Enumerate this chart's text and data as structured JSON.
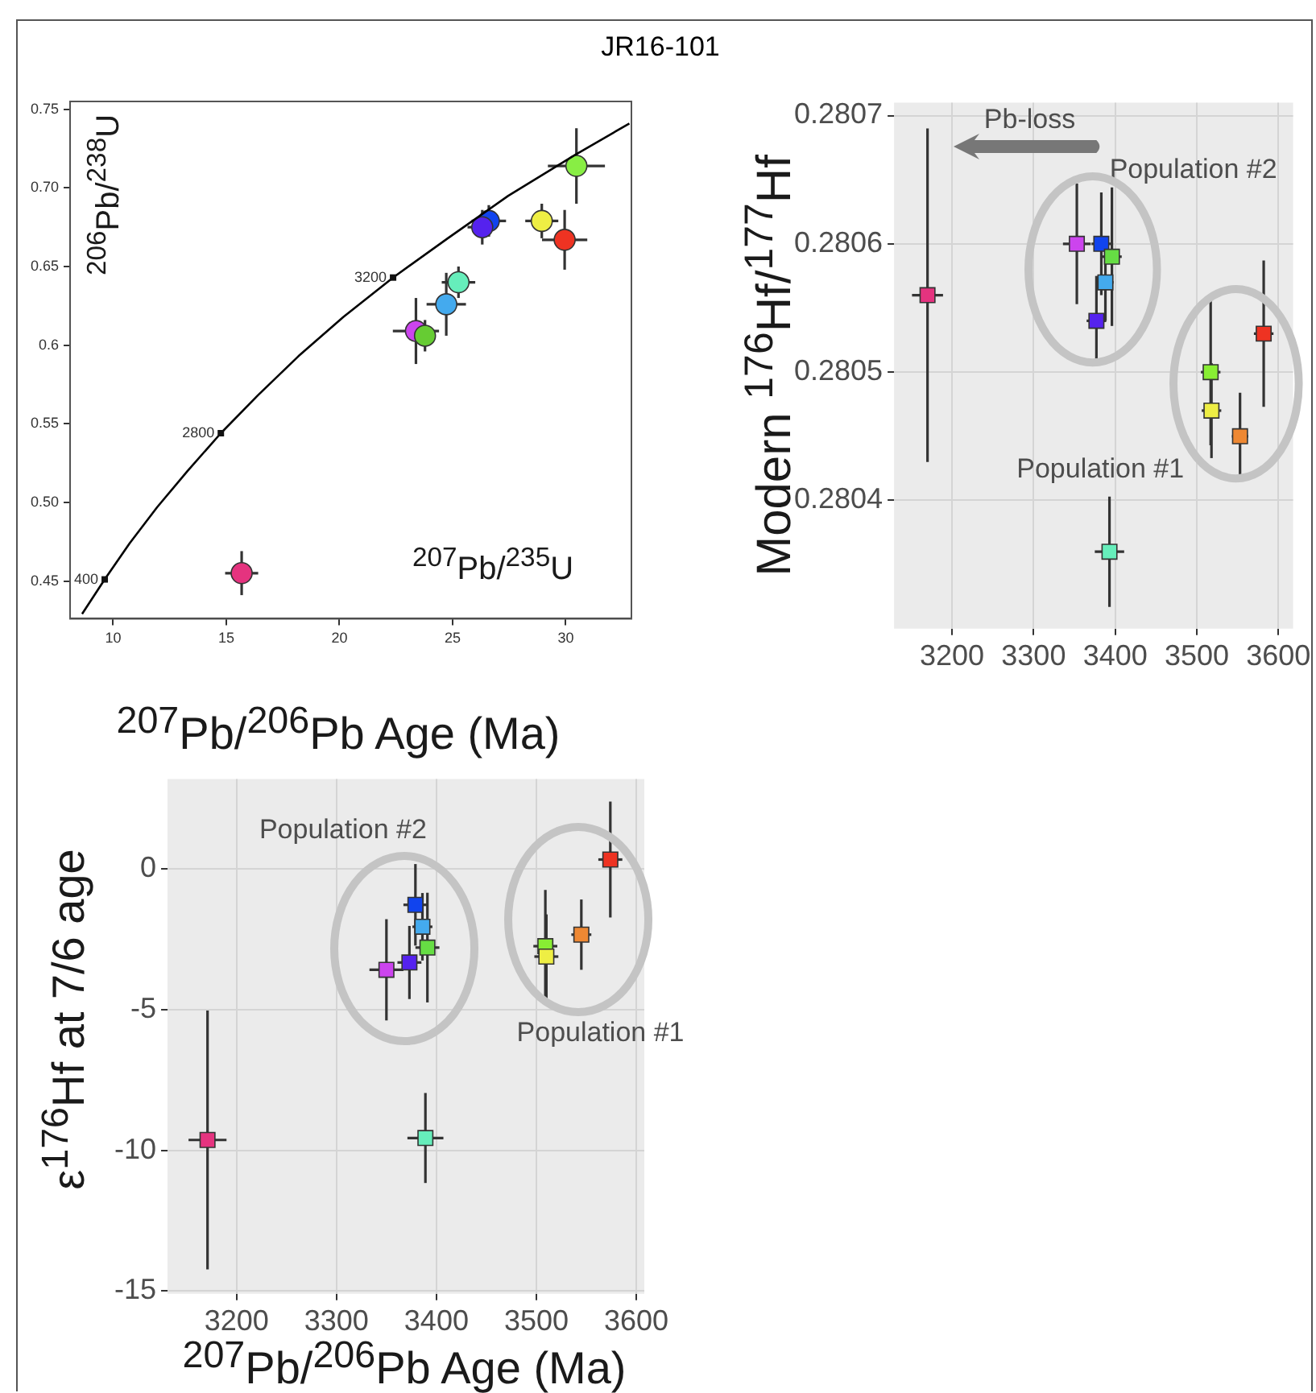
{
  "chart_data": [
    {
      "type": "scatter",
      "title": "JR16-101",
      "xlabel": "$^{207}$Pb/$^{235}$U",
      "ylabel": "$^{206}$Pb/$^{238}$U",
      "xlim": [
        8.1,
        32.9
      ],
      "ylim": [
        0.426,
        0.755
      ],
      "xticks": [
        10,
        15,
        20,
        25,
        30
      ],
      "yticks": [
        0.45,
        {
          "value": 0.5,
          "label": "0.50"
        },
        0.55,
        0.6,
        0.65,
        {
          "value": 0.7,
          "label": "0.70"
        },
        0.75
      ],
      "grid": false,
      "annotations": [
        {
          "text": "400",
          "x": 9.63,
          "y": 0.451
        },
        {
          "text": "2800",
          "x": 14.76,
          "y": 0.544
        },
        {
          "text": "3200",
          "x": 22.37,
          "y": 0.643
        }
      ],
      "series": [
        {
          "type": "line",
          "color": "#000000",
          "marker": "none",
          "x": [
            8.63,
            9.63,
            10.73,
            11.95,
            13.29,
            14.76,
            16.39,
            18.19,
            20.18,
            22.37,
            24.79,
            27.46,
            30.41,
            32.81
          ],
          "values": [
            0.429,
            0.451,
            0.474,
            0.497,
            0.52,
            0.544,
            0.568,
            0.593,
            0.618,
            0.643,
            0.668,
            0.695,
            0.721,
            0.741
          ]
        },
        {
          "marker": "circle",
          "x": [
            15.68,
            23.38,
            23.78,
            24.72,
            25.26,
            26.6,
            26.31,
            28.94,
            29.95,
            30.47
          ],
          "values": [
            0.455,
            0.609,
            0.606,
            0.626,
            0.64,
            0.679,
            0.675,
            0.679,
            0.667,
            0.714
          ],
          "xerrors": [
            0.73,
            1.02,
            0.47,
            0.87,
            0.74,
            0.76,
            0.65,
            0.73,
            1.0,
            1.26
          ],
          "errors": [
            0.014,
            0.021,
            0.01,
            0.02,
            0.01,
            0.01,
            0.011,
            0.011,
            0.019,
            0.024
          ],
          "colors": [
            "#e5337f",
            "#cc44ee",
            "#66cc33",
            "#44aaee",
            "#66eebb",
            "#1144ee",
            "#5522ee",
            "#eeee44",
            "#ee3322",
            "#88ee44"
          ]
        }
      ]
    },
    {
      "type": "scatter",
      "xlabel": "$^{207}$Pb/$^{206}$Pb Age (Ma)",
      "ylabel": "Modern $^{176}$Hf/$^{177}$Hf",
      "xlim": [
        3129,
        3618
      ],
      "ylim": [
        0.2803,
        0.28071
      ],
      "xticks": [
        3200,
        3300,
        3400,
        3500,
        3600
      ],
      "yticks": [
        0.2804,
        0.2805,
        0.2806,
        0.2807
      ],
      "grid": true,
      "marker": "square",
      "annotations": [
        "Pb-loss",
        "Population #2",
        "Population #1"
      ],
      "series": [
        {
          "x": [
            3170,
            3353,
            3377,
            3383,
            3388,
            3396,
            3393,
            3517,
            3518,
            3553,
            3582
          ],
          "values": [
            0.28056,
            0.2806,
            0.28054,
            0.2806,
            0.28057,
            0.28059,
            0.28036,
            0.2805,
            0.28047,
            0.28045,
            0.28053
          ],
          "xerrors": [
            19,
            17,
            12,
            12,
            10,
            12,
            18,
            12,
            12,
            10,
            12
          ],
          "errors": [
            0.00013,
            4.7e-05,
            3.5e-05,
            4e-05,
            3e-05,
            5.4e-05,
            4.3e-05,
            5.7e-05,
            3.7e-05,
            3.4e-05,
            5.7e-05
          ],
          "colors": [
            "#e5337f",
            "#cc44ee",
            "#5522ee",
            "#1144ee",
            "#44aaee",
            "#66dd44",
            "#66eebb",
            "#88ee33",
            "#eeee44",
            "#ee8833",
            "#ee3322"
          ]
        }
      ]
    },
    {
      "type": "scatter",
      "xlabel": "$^{207}$Pb/$^{206}$Pb Age (Ma)",
      "ylabel": "ε$^{176}$Hf at 7/6 age",
      "xlim": [
        3131,
        3608
      ],
      "ylim": [
        -15.1,
        3.2
      ],
      "xticks": [
        3200,
        3300,
        3400,
        3500,
        3600
      ],
      "yticks": [
        -15,
        -10,
        -5,
        0
      ],
      "grid": true,
      "marker": "square",
      "annotations": [
        "Population #2",
        "Population #1"
      ],
      "series": [
        {
          "x": [
            3171,
            3350,
            3373,
            3379,
            3386,
            3391,
            3389,
            3509,
            3510,
            3545,
            3574
          ],
          "values": [
            -9.63,
            -3.58,
            -3.32,
            -1.27,
            -2.05,
            -2.79,
            -9.56,
            -2.74,
            -3.11,
            -2.33,
            0.34
          ],
          "xerrors": [
            19,
            17,
            12,
            12,
            10,
            12,
            18,
            12,
            12,
            10,
            12
          ],
          "errors": [
            4.6,
            1.8,
            1.3,
            1.45,
            1.2,
            1.95,
            1.6,
            2.0,
            1.5,
            1.25,
            2.06
          ],
          "colors": [
            "#e5337f",
            "#cc44ee",
            "#5522ee",
            "#1144ee",
            "#44aaee",
            "#66dd44",
            "#66eebb",
            "#88ee33",
            "#eeee44",
            "#ee8833",
            "#ee3322"
          ]
        }
      ]
    }
  ]
}
